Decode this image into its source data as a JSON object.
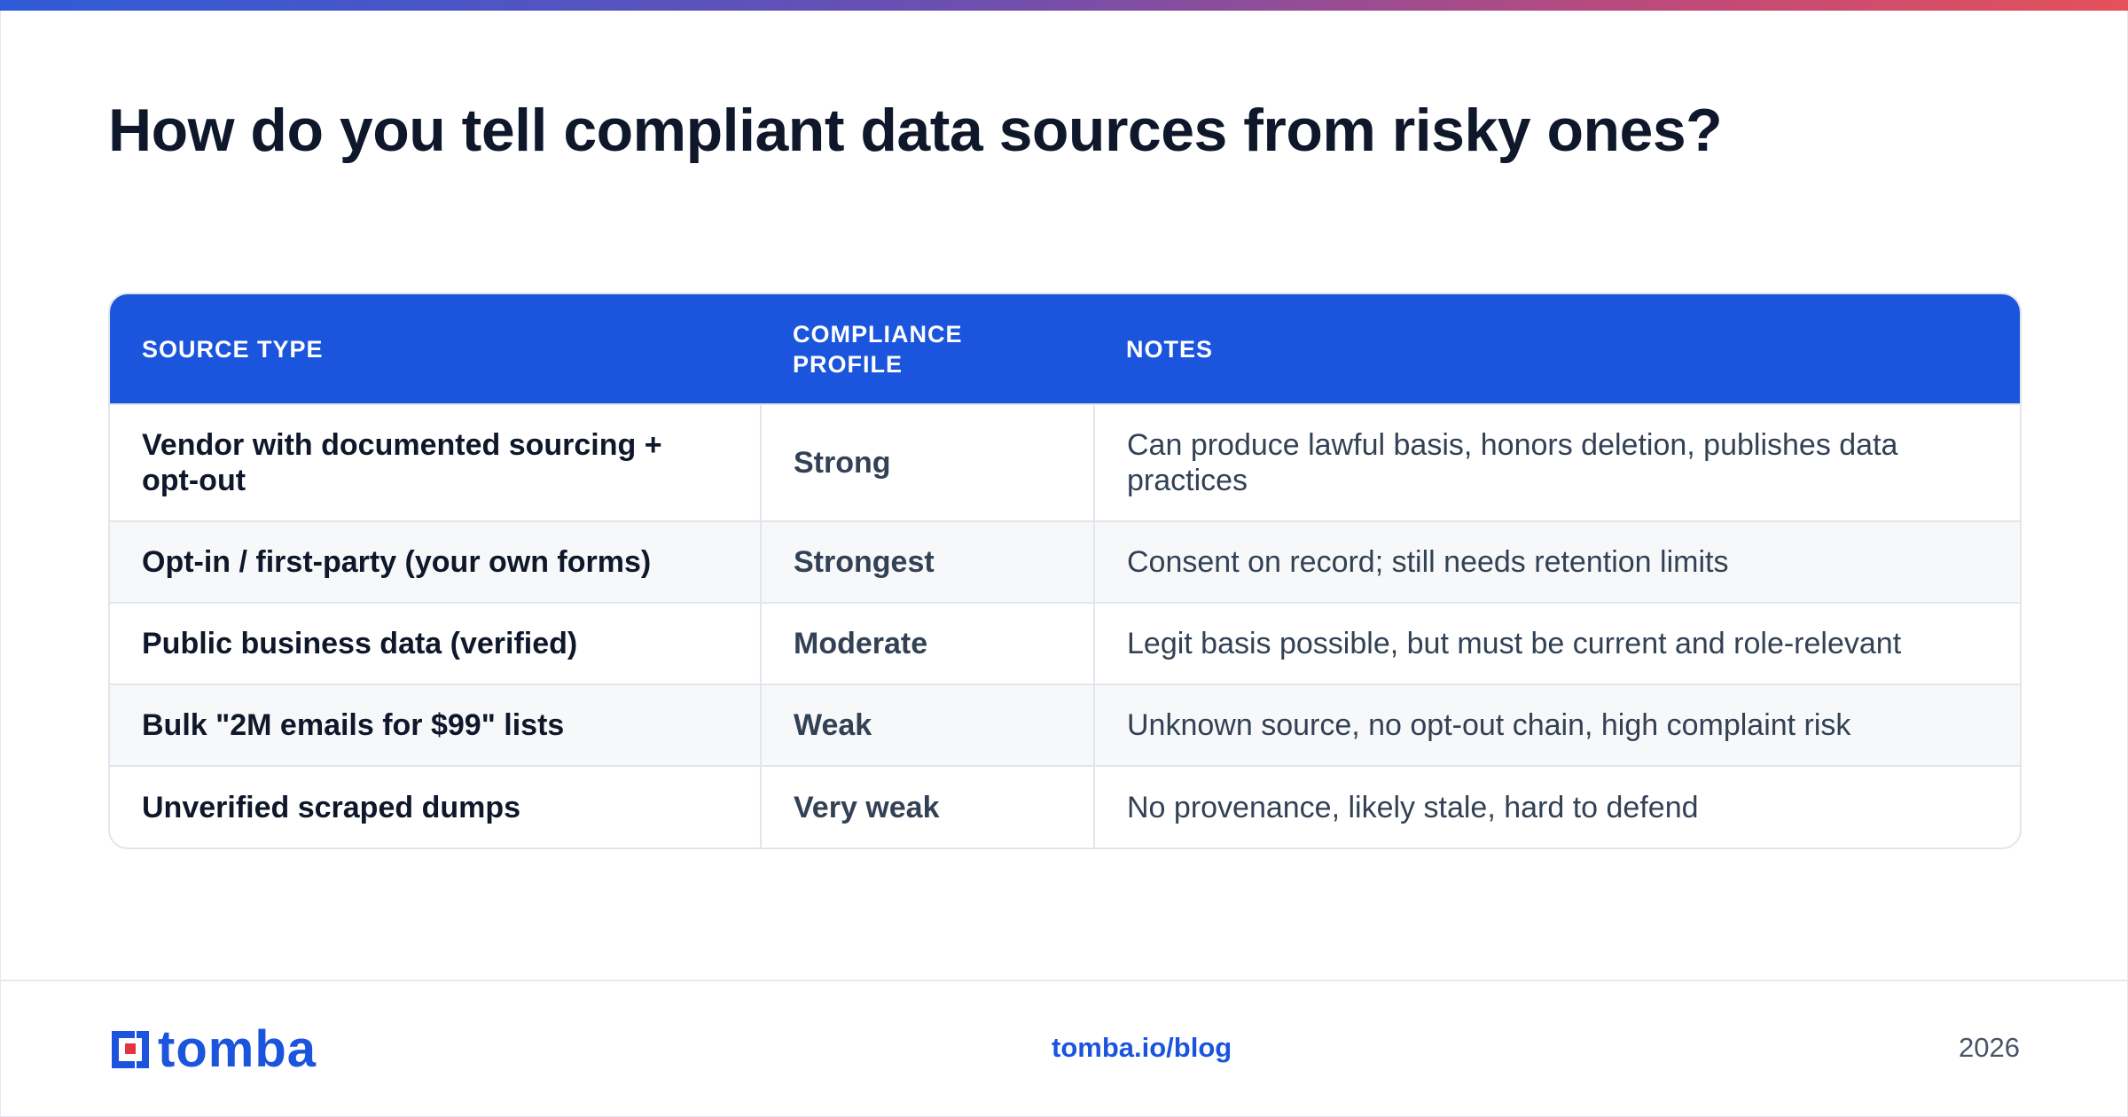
{
  "page": {
    "title": "How do you tell compliant data sources from risky ones?",
    "accent_color": "#1b55dd",
    "gradient_colors": [
      "#2f5bd8",
      "#6c4fb0",
      "#c24a77",
      "#e4515a"
    ]
  },
  "table": {
    "headers": [
      "SOURCE TYPE",
      "COMPLIANCE PROFILE",
      "NOTES"
    ],
    "rows": [
      {
        "source": "Vendor with documented sourcing + opt-out",
        "profile": "Strong",
        "notes": "Can produce lawful basis, honors deletion, publishes data practices"
      },
      {
        "source": "Opt-in / first-party (your own forms)",
        "profile": "Strongest",
        "notes": "Consent on record; still needs retention limits"
      },
      {
        "source": "Public business data (verified)",
        "profile": "Moderate",
        "notes": "Legit basis possible, but must be current and role-relevant"
      },
      {
        "source": "Bulk \"2M emails for $99\" lists",
        "profile": "Weak",
        "notes": "Unknown source, no opt-out chain, high complaint risk"
      },
      {
        "source": "Unverified scraped dumps",
        "profile": "Very weak",
        "notes": "No provenance, likely stale, hard to defend"
      }
    ]
  },
  "footer": {
    "logo_text": "tomba",
    "link": "tomba.io/blog",
    "year": "2026"
  }
}
